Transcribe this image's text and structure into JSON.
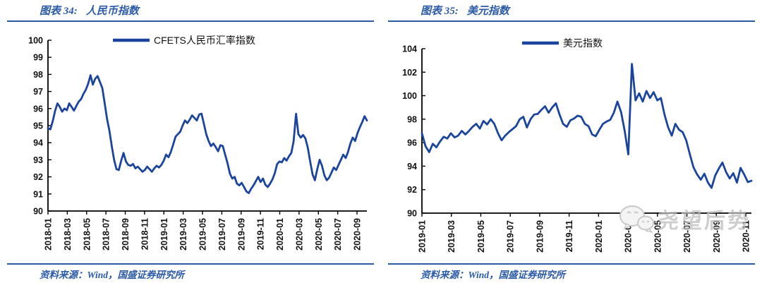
{
  "page": {
    "figures": [
      {
        "label": "图表 34:",
        "title": "人民币指数",
        "source": "资料来源：Wind，国盛证券研究所"
      },
      {
        "label": "图表 35:",
        "title": "美元指数",
        "source": "资料来源：Wind，国盛证券研究所"
      }
    ],
    "watermark": {
      "text": "尧望后势"
    }
  },
  "colors": {
    "accent_blue": "#2b5aa6",
    "line_blue": "#1b449c",
    "axis_black": "#000000",
    "watermark_gray": "#c9c9c9"
  },
  "chart_data": [
    {
      "type": "line",
      "title": "人民币指数",
      "legend": [
        "CFETS人民币汇率指数"
      ],
      "legend_position": "top-center-inside",
      "grid": false,
      "ylim": [
        90,
        100
      ],
      "ytick_step": 1,
      "x_tick_labels": [
        "2018-01",
        "2018-03",
        "2018-05",
        "2018-07",
        "2018-09",
        "2018-11",
        "2019-01",
        "2019-03",
        "2019-05",
        "2019-07",
        "2019-09",
        "2019-11",
        "2020-01",
        "2020-03",
        "2020-05",
        "2020-07",
        "2020-09"
      ],
      "x_range_note": "weekly data 2018-01 through 2020-10",
      "series": [
        {
          "name": "CFETS人民币汇率指数",
          "values": [
            94.85,
            94.78,
            95.25,
            95.85,
            96.3,
            96.1,
            95.82,
            96.0,
            95.9,
            96.3,
            96.1,
            95.88,
            96.15,
            96.4,
            96.55,
            96.85,
            97.1,
            97.45,
            97.95,
            97.4,
            97.75,
            97.9,
            97.55,
            97.2,
            96.3,
            95.4,
            94.7,
            93.8,
            93.0,
            92.45,
            92.4,
            92.95,
            93.4,
            92.9,
            92.7,
            92.65,
            92.75,
            92.5,
            92.6,
            92.45,
            92.3,
            92.4,
            92.6,
            92.45,
            92.3,
            92.5,
            92.65,
            92.55,
            92.7,
            92.95,
            93.3,
            93.15,
            93.45,
            93.9,
            94.35,
            94.5,
            94.65,
            95.0,
            95.3,
            95.15,
            95.35,
            95.6,
            95.45,
            95.3,
            95.65,
            95.7,
            95.1,
            94.5,
            94.1,
            93.8,
            93.95,
            93.75,
            93.5,
            93.85,
            93.8,
            93.3,
            92.8,
            92.2,
            91.9,
            92.0,
            91.6,
            91.5,
            91.65,
            91.4,
            91.15,
            91.05,
            91.3,
            91.5,
            91.75,
            92.0,
            91.7,
            91.9,
            91.55,
            91.4,
            91.6,
            91.85,
            92.2,
            92.75,
            92.9,
            92.85,
            93.1,
            92.95,
            93.2,
            93.4,
            94.1,
            95.7,
            94.5,
            94.3,
            94.45,
            94.25,
            93.7,
            92.9,
            92.15,
            91.8,
            92.45,
            93.0,
            92.65,
            92.1,
            91.8,
            91.95,
            92.25,
            92.55,
            92.4,
            92.7,
            93.0,
            93.3,
            93.1,
            93.45,
            93.95,
            94.3,
            94.1,
            94.55,
            94.9,
            95.2,
            95.55,
            95.3
          ]
        }
      ]
    },
    {
      "type": "line",
      "title": "美元指数",
      "legend": [
        "美元指数"
      ],
      "legend_position": "top-center-inside",
      "grid": false,
      "ylim": [
        90,
        104
      ],
      "ytick_step": 2,
      "x_tick_labels": [
        "2019-01",
        "2019-03",
        "2019-05",
        "2019-07",
        "2019-09",
        "2019-11",
        "2020-01",
        "2020-03",
        "2020-05",
        "2020-07",
        "2020-09",
        "2020-11"
      ],
      "x_range_note": "weekly data 2019-01 through 2020-11",
      "series": [
        {
          "name": "美元指数",
          "values": [
            96.8,
            95.7,
            95.2,
            95.9,
            95.6,
            96.1,
            96.5,
            96.35,
            96.8,
            96.45,
            96.6,
            97.0,
            96.7,
            97.0,
            97.35,
            97.6,
            97.2,
            97.85,
            97.55,
            98.0,
            97.6,
            96.8,
            96.2,
            96.6,
            96.9,
            97.15,
            97.4,
            98.0,
            98.2,
            97.3,
            98.0,
            98.4,
            98.45,
            98.8,
            99.1,
            98.55,
            99.0,
            99.35,
            98.4,
            97.6,
            97.35,
            97.9,
            98.05,
            98.3,
            98.2,
            97.6,
            97.4,
            96.7,
            96.55,
            97.1,
            97.6,
            97.8,
            97.95,
            98.55,
            99.5,
            98.6,
            97.0,
            95.0,
            102.7,
            99.6,
            100.2,
            99.5,
            100.4,
            99.8,
            100.3,
            99.6,
            99.8,
            98.4,
            97.3,
            96.6,
            97.6,
            97.1,
            96.9,
            96.2,
            95.0,
            93.9,
            93.3,
            92.85,
            93.35,
            92.6,
            92.15,
            93.2,
            93.8,
            94.3,
            93.5,
            92.95,
            93.4,
            92.6,
            93.85,
            93.3,
            92.65,
            92.75
          ]
        }
      ]
    }
  ]
}
